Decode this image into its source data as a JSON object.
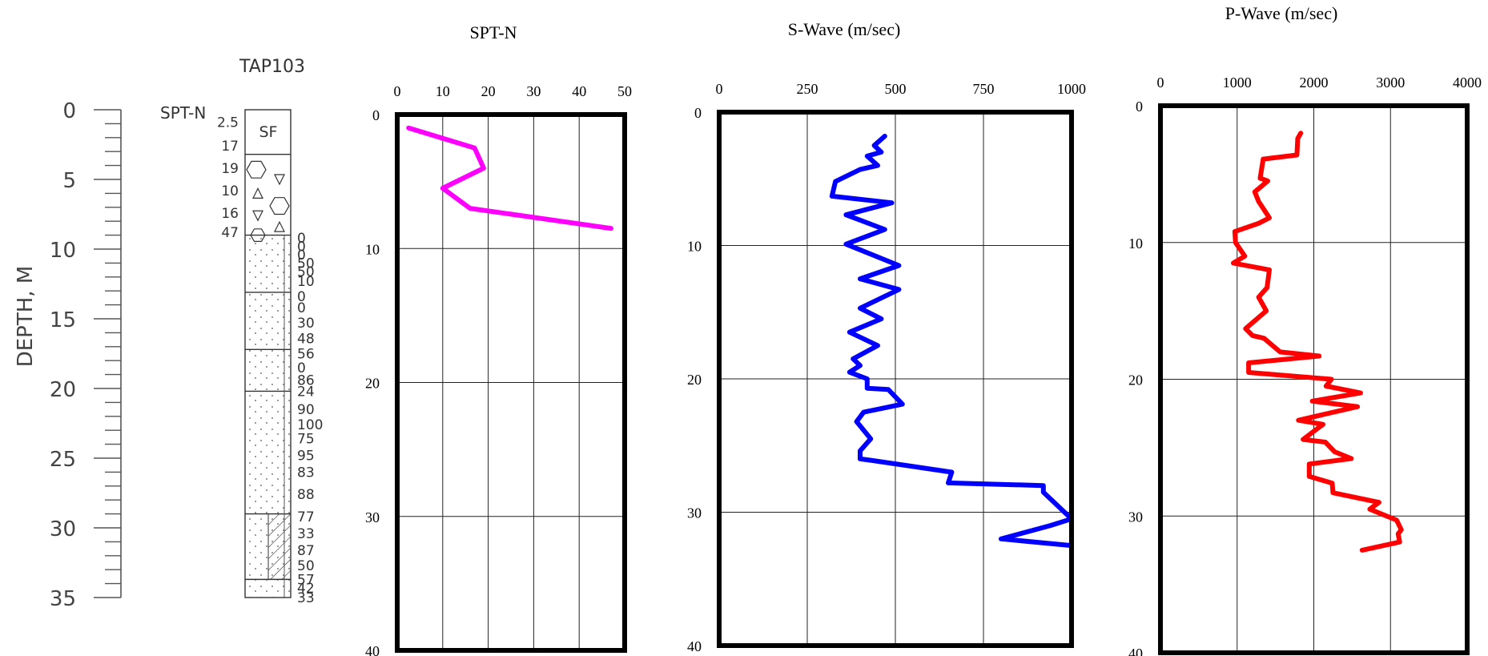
{
  "boring": {
    "name": "TAP103",
    "depth_axis_label": "DEPTH, M",
    "depth_ticks": [
      "0",
      "5",
      "10",
      "15",
      "20",
      "25",
      "30",
      "35"
    ],
    "depth_range": [
      0,
      35
    ],
    "spt_header": "SPT-N",
    "surface_layer_label": "SF",
    "spt_labels": [
      {
        "depth": 0.9,
        "text": "2.5"
      },
      {
        "depth": 2.6,
        "text": "17"
      },
      {
        "depth": 4.2,
        "text": "19"
      },
      {
        "depth": 5.8,
        "text": "10"
      },
      {
        "depth": 7.4,
        "text": "16"
      },
      {
        "depth": 8.8,
        "text": "47"
      },
      {
        "depth": 9.2,
        "text": "0"
      },
      {
        "depth": 9.8,
        "text": "0"
      },
      {
        "depth": 10.4,
        "text": "0"
      },
      {
        "depth": 11.0,
        "text": "50"
      },
      {
        "depth": 11.6,
        "text": "50"
      },
      {
        "depth": 12.3,
        "text": "10"
      },
      {
        "depth": 13.4,
        "text": "0"
      },
      {
        "depth": 14.2,
        "text": "0"
      },
      {
        "depth": 15.3,
        "text": "30"
      },
      {
        "depth": 16.4,
        "text": "48"
      },
      {
        "depth": 17.5,
        "text": "56"
      },
      {
        "depth": 18.5,
        "text": "0"
      },
      {
        "depth": 19.4,
        "text": "86"
      },
      {
        "depth": 20.2,
        "text": "24"
      },
      {
        "depth": 21.5,
        "text": "90"
      },
      {
        "depth": 22.6,
        "text": "100"
      },
      {
        "depth": 23.6,
        "text": "75"
      },
      {
        "depth": 24.8,
        "text": "95"
      },
      {
        "depth": 26.0,
        "text": "83"
      },
      {
        "depth": 27.6,
        "text": "88"
      },
      {
        "depth": 29.2,
        "text": "77"
      },
      {
        "depth": 30.4,
        "text": "33"
      },
      {
        "depth": 31.6,
        "text": "87"
      },
      {
        "depth": 32.7,
        "text": "50"
      },
      {
        "depth": 33.7,
        "text": "57"
      },
      {
        "depth": 34.3,
        "text": "42"
      },
      {
        "depth": 35.0,
        "text": "33"
      }
    ]
  },
  "chart_data": [
    {
      "type": "line",
      "title": "SPT-N",
      "xlabel": "",
      "ylabel": "",
      "x_axis_position": "top",
      "y_inverted": true,
      "xlim": [
        0,
        50
      ],
      "ylim": [
        0,
        40
      ],
      "x_ticks": [
        "0",
        "10",
        "20",
        "30",
        "40",
        "50"
      ],
      "y_ticks": [
        "0",
        "10",
        "20",
        "30",
        "40"
      ],
      "grid": true,
      "color": "#ff00ff",
      "series": [
        {
          "points": [
            [
              2.5,
              1.0
            ],
            [
              17,
              2.5
            ],
            [
              19,
              4.0
            ],
            [
              10,
              5.5
            ],
            [
              16,
              7.0
            ],
            [
              47,
              8.5
            ]
          ]
        }
      ]
    },
    {
      "type": "line",
      "title": "S-Wave (m/sec)",
      "xlabel": "",
      "ylabel": "",
      "x_axis_position": "top",
      "y_inverted": true,
      "xlim": [
        0,
        1000
      ],
      "ylim": [
        0,
        40
      ],
      "x_ticks": [
        "0",
        "250",
        "500",
        "750",
        "1000"
      ],
      "y_ticks": [
        "0",
        "10",
        "20",
        "30",
        "40"
      ],
      "grid": true,
      "color": "#0000ff",
      "series": [
        {
          "points": [
            [
              470,
              1.8
            ],
            [
              440,
              2.5
            ],
            [
              460,
              3.0
            ],
            [
              420,
              3.3
            ],
            [
              450,
              4.0
            ],
            [
              400,
              4.3
            ],
            [
              330,
              5.2
            ],
            [
              320,
              6.3
            ],
            [
              490,
              6.8
            ],
            [
              360,
              7.7
            ],
            [
              470,
              8.8
            ],
            [
              360,
              9.9
            ],
            [
              510,
              11.5
            ],
            [
              400,
              12.5
            ],
            [
              510,
              13.3
            ],
            [
              400,
              14.7
            ],
            [
              460,
              15.5
            ],
            [
              370,
              16.5
            ],
            [
              450,
              17.5
            ],
            [
              380,
              18.5
            ],
            [
              400,
              19.0
            ],
            [
              370,
              19.5
            ],
            [
              420,
              20.0
            ],
            [
              420,
              20.7
            ],
            [
              480,
              20.8
            ],
            [
              520,
              21.9
            ],
            [
              410,
              22.5
            ],
            [
              390,
              23.2
            ],
            [
              430,
              24.5
            ],
            [
              400,
              25.4
            ],
            [
              400,
              26.0
            ],
            [
              430,
              26.1
            ],
            [
              660,
              27.0
            ],
            [
              650,
              27.8
            ],
            [
              920,
              28.0
            ],
            [
              920,
              28.5
            ],
            [
              1000,
              30.5
            ],
            [
              940,
              31.0
            ],
            [
              800,
              32.0
            ],
            [
              1000,
              32.5
            ]
          ]
        }
      ]
    },
    {
      "type": "line",
      "title": "P-Wave (m/sec)",
      "xlabel": "",
      "ylabel": "",
      "x_axis_position": "top",
      "y_inverted": true,
      "xlim": [
        0,
        4000
      ],
      "ylim": [
        0,
        40
      ],
      "x_ticks": [
        "0",
        "1000",
        "2000",
        "3000",
        "4000"
      ],
      "y_ticks": [
        "0",
        "10",
        "20",
        "30",
        "40"
      ],
      "grid": true,
      "color": "#ff0000",
      "series": [
        {
          "points": [
            [
              1830,
              2.0
            ],
            [
              1790,
              2.4
            ],
            [
              1780,
              3.6
            ],
            [
              1340,
              3.9
            ],
            [
              1300,
              5.3
            ],
            [
              1400,
              5.5
            ],
            [
              1230,
              6.3
            ],
            [
              1280,
              7.0
            ],
            [
              1420,
              8.2
            ],
            [
              1280,
              8.6
            ],
            [
              970,
              9.2
            ],
            [
              980,
              10.0
            ],
            [
              1100,
              11.0
            ],
            [
              950,
              11.5
            ],
            [
              1420,
              12.0
            ],
            [
              1390,
              13.3
            ],
            [
              1280,
              14.0
            ],
            [
              1380,
              15.0
            ],
            [
              1110,
              16.3
            ],
            [
              1200,
              16.8
            ],
            [
              1350,
              17.0
            ],
            [
              1560,
              18.0
            ],
            [
              2070,
              18.3
            ],
            [
              1150,
              18.8
            ],
            [
              1150,
              19.5
            ],
            [
              2230,
              20.0
            ],
            [
              2160,
              20.5
            ],
            [
              2610,
              21.0
            ],
            [
              1980,
              21.6
            ],
            [
              2570,
              22.0
            ],
            [
              1800,
              23.0
            ],
            [
              2120,
              23.3
            ],
            [
              1860,
              24.4
            ],
            [
              2150,
              24.6
            ],
            [
              2270,
              25.3
            ],
            [
              2490,
              25.8
            ],
            [
              1940,
              26.2
            ],
            [
              1940,
              27.1
            ],
            [
              2240,
              27.6
            ],
            [
              2250,
              28.3
            ],
            [
              2850,
              29.0
            ],
            [
              2730,
              29.5
            ],
            [
              3080,
              30.3
            ],
            [
              3140,
              31.0
            ],
            [
              3100,
              31.3
            ],
            [
              3120,
              31.9
            ],
            [
              2630,
              32.5
            ]
          ]
        }
      ]
    }
  ]
}
